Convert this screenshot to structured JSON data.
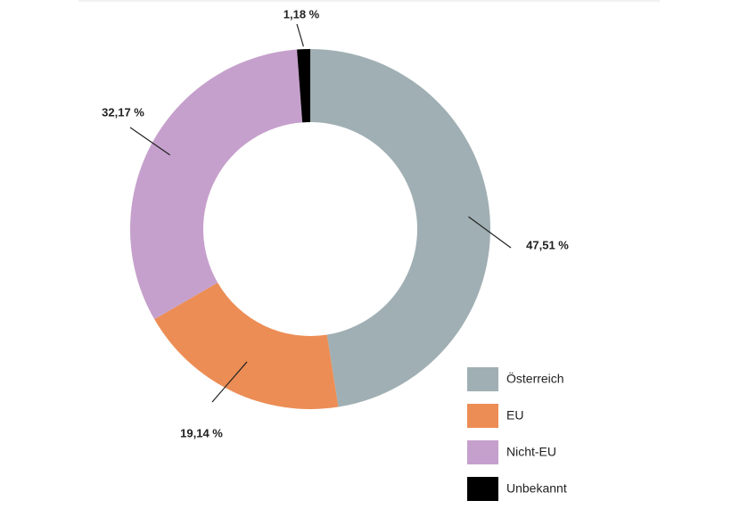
{
  "chart_data": {
    "type": "pie",
    "donut": true,
    "categories": [
      "Österreich",
      "EU",
      "Nicht-EU",
      "Unbekannt"
    ],
    "values": [
      47.51,
      19.14,
      32.17,
      1.18
    ],
    "value_labels": [
      "47,51 %",
      "19,14 %",
      "32,17 %",
      "1,18 %"
    ],
    "colors": [
      "#a0afb3",
      "#ec8d55",
      "#c6a0cc",
      "#000000"
    ],
    "legend": [
      "Österreich",
      "EU",
      "Nicht-EU",
      "Unbekannt"
    ],
    "legend_position": "bottom-right",
    "title": ""
  }
}
